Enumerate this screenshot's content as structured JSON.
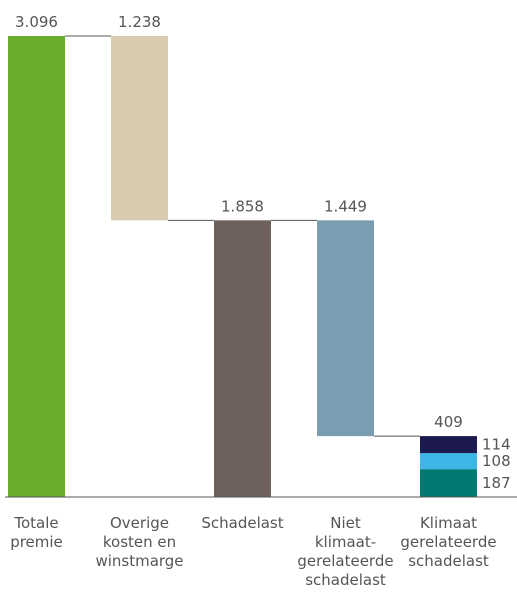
{
  "chart_data": {
    "type": "waterfall",
    "categories": [
      "Totale\npremie",
      "Overige\nkosten en\nwinstmarge",
      "Schadelast",
      "Niet\nklimaat-\ngerelateerde\nschadelast",
      "Klimaat\ngerelateerde\nschadelast"
    ],
    "values": [
      3096,
      1238,
      1858,
      1449,
      409
    ],
    "value_labels": [
      "3.096",
      "1.238",
      "1.858",
      "1.449",
      "409"
    ],
    "measures": [
      "total",
      "decrease",
      "total",
      "decrease",
      "total"
    ],
    "colors": [
      "#6aac2c",
      "#d8ccaf",
      "#6e605b",
      "#7b9db1",
      null
    ],
    "segments": [
      null,
      null,
      null,
      null,
      [
        187,
        108,
        114
      ]
    ],
    "segment_colors": [
      "#007a70",
      "#3db5e6",
      "#1c1a4e"
    ]
  }
}
